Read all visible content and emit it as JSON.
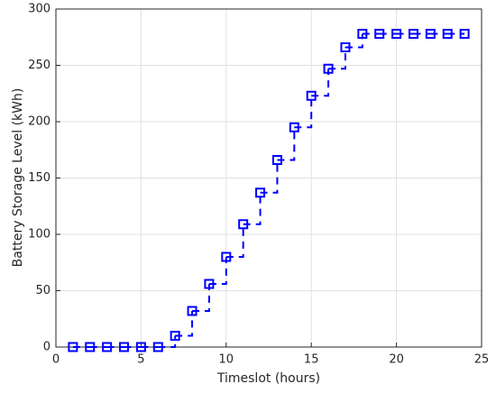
{
  "chart_data": {
    "type": "line",
    "step": true,
    "marker": "square",
    "line_style": "dashed",
    "xlabel": "Timeslot (hours)",
    "ylabel": "Battery Storage Level (kWh)",
    "x": [
      1,
      2,
      3,
      4,
      5,
      6,
      7,
      8,
      9,
      10,
      11,
      12,
      13,
      14,
      15,
      16,
      17,
      18,
      19,
      20,
      21,
      22,
      23,
      24
    ],
    "series": [
      {
        "color": "#0000ff",
        "values": [
          0,
          0,
          0,
          0,
          0,
          0,
          10,
          32,
          56,
          80,
          109,
          137,
          166,
          195,
          223,
          247,
          266,
          278,
          278,
          278,
          278,
          278,
          278,
          278
        ]
      }
    ],
    "xlim": [
      0,
      25
    ],
    "xticks": [
      0,
      5,
      10,
      15,
      20,
      25
    ],
    "ylim": [
      0,
      300
    ],
    "yticks": [
      0,
      50,
      100,
      150,
      200,
      250,
      300
    ],
    "grid": true
  }
}
